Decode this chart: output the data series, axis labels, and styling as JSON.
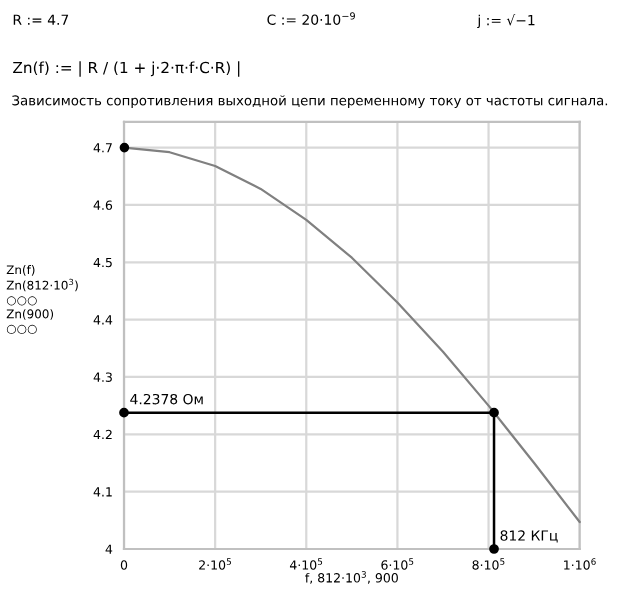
{
  "chart_data": {
    "type": "line",
    "title": "Зависимость сопротивления выходной цепи переменному току от частоты сигнала.",
    "xlabel": "f, 812·10$^{3}$, 900",
    "ylabel": "Zn(f)\nZn(812·10$^{3}$)\n○○○\nZn(900)\n○○○",
    "annotations": [
      "R := 4.7",
      "C := 20·10$^{−9}$",
      "j := √−1",
      "Zn(f) := | R / (1 + j·2·π·f·C·R) |",
      {
        "text": "4.2378 Ом",
        "x": 0,
        "y": 4.2378
      },
      {
        "text": "812 КГц",
        "x": 812000,
        "y": 4.0
      }
    ],
    "xlim": [
      0,
      1000000
    ],
    "ylim": [
      4.0,
      4.745
    ],
    "xticks": [
      0,
      {
        "value": 200000,
        "label": "2·10$^{5}$"
      },
      {
        "value": 400000,
        "label": "4·10$^{5}$"
      },
      {
        "value": 600000,
        "label": "6·10$^{5}$"
      },
      {
        "value": 800000,
        "label": "8·10$^{5}$"
      },
      {
        "value": 1000000,
        "label": "1·10$^{6}$"
      }
    ],
    "yticks": [
      4,
      4.1,
      4.2,
      4.3,
      4.4,
      4.5,
      4.6,
      4.7
    ],
    "grid": true,
    "series": [
      {
        "color": "#808080",
        "marker": "none",
        "x": [
          0,
          100000,
          200000,
          300000,
          400000,
          500000,
          600000,
          700000,
          800000,
          900000,
          1000000
        ],
        "values": [
          4.7,
          4.692,
          4.668,
          4.628,
          4.574,
          4.508,
          4.43,
          4.344,
          4.25,
          4.15,
          4.047
        ]
      },
      {
        "type": "line",
        "color": "#000000",
        "marker": "circle",
        "x": [
          0,
          812000,
          812000
        ],
        "values": [
          4.2378,
          4.2378,
          4.0
        ]
      },
      {
        "type": "scatter",
        "color": "#000000",
        "marker": "circle",
        "x": [
          900
        ],
        "values": [
          4.7
        ]
      }
    ]
  }
}
